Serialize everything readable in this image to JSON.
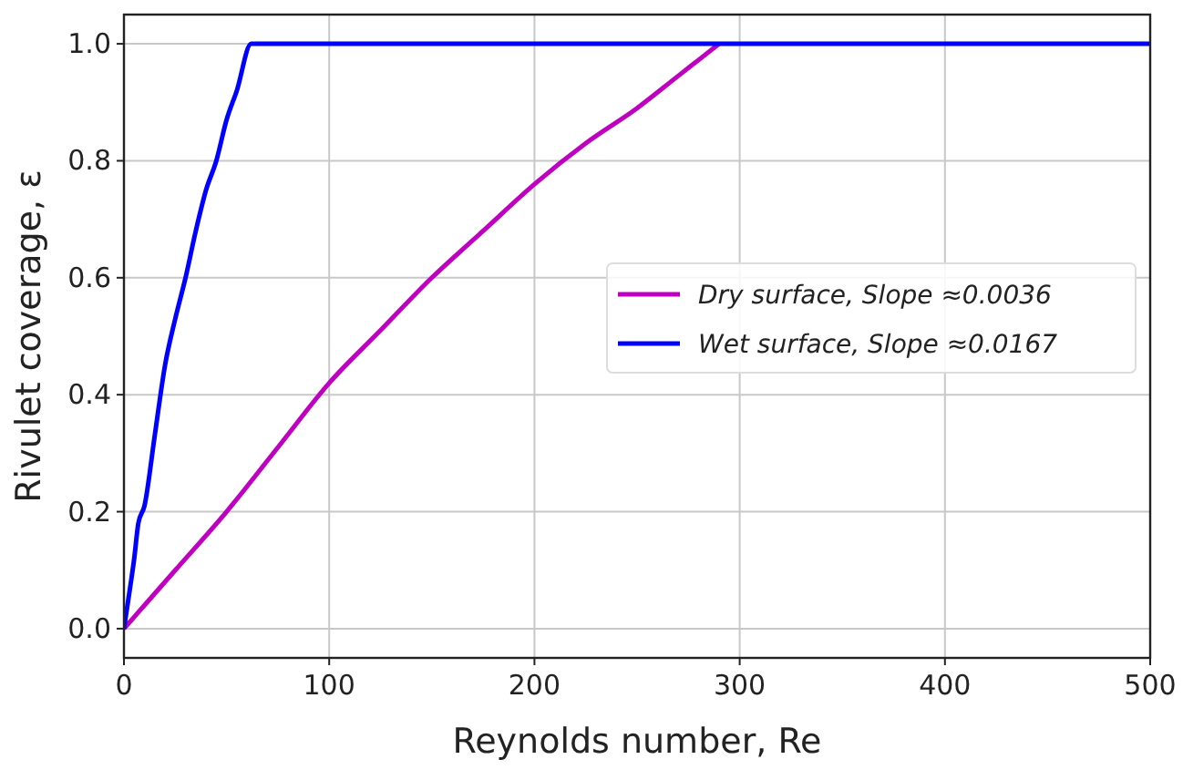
{
  "chart_data": {
    "type": "line",
    "xlabel": "Reynolds number, Re",
    "ylabel": "Rivulet coverage, ε",
    "xlim": [
      0,
      500
    ],
    "ylim": [
      -0.05,
      1.05
    ],
    "xticks": [
      0,
      100,
      200,
      300,
      400,
      500
    ],
    "yticks": [
      {
        "value": 0,
        "label": "0.0"
      },
      {
        "value": 0.2,
        "label": "0.2"
      },
      {
        "value": 0.4,
        "label": "0.4"
      },
      {
        "value": 0.6,
        "label": "0.6"
      },
      {
        "value": 0.8,
        "label": "0.8"
      },
      {
        "value": 1,
        "label": "1.0"
      }
    ],
    "grid": true,
    "legend": "right",
    "line_style": "solid",
    "series": [
      {
        "name": "Dry surface, Slope ≈0.0036",
        "color": "#c000c0",
        "x": [
          0,
          5,
          10,
          25,
          50,
          75,
          100,
          125,
          150,
          175,
          200,
          225,
          250,
          270,
          290
        ],
        "values": [
          0,
          0.02,
          0.04,
          0.1,
          0.2,
          0.31,
          0.42,
          0.51,
          0.6,
          0.68,
          0.76,
          0.83,
          0.89,
          0.945,
          1
        ]
      },
      {
        "name": "Wet surface, Slope ≈0.0167",
        "color": "#0000ff",
        "x": [
          0,
          3,
          5,
          7,
          10,
          15,
          20,
          25,
          30,
          35,
          40,
          45,
          50,
          55,
          62,
          100,
          200,
          300,
          400,
          500
        ],
        "values": [
          0,
          0.07,
          0.12,
          0.18,
          0.21,
          0.33,
          0.45,
          0.53,
          0.6,
          0.68,
          0.75,
          0.8,
          0.87,
          0.92,
          1,
          1,
          1,
          1,
          1,
          1
        ]
      }
    ]
  }
}
